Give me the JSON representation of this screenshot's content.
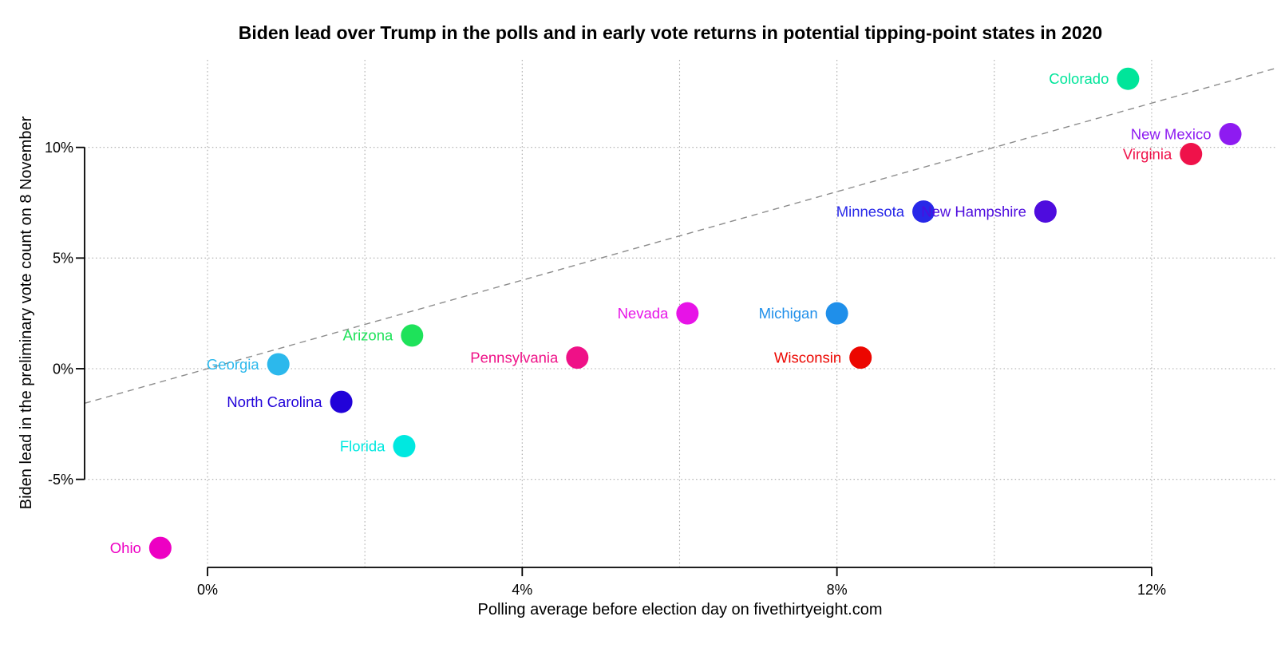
{
  "chart_data": {
    "type": "scatter",
    "title": "Biden lead over Trump in the polls and in early vote returns in potential tipping-point states in 2020",
    "xlabel": "Polling average before election day on fivethirtyeight.com",
    "ylabel": "Biden lead in the preliminary vote count on 8 November",
    "x_ticks": [
      {
        "value": 0,
        "label": "0%"
      },
      {
        "value": 4,
        "label": "4%"
      },
      {
        "value": 8,
        "label": "8%"
      },
      {
        "value": 12,
        "label": "12%"
      }
    ],
    "y_ticks": [
      {
        "value": -5,
        "label": "-5%"
      },
      {
        "value": 0,
        "label": "0%"
      },
      {
        "value": 5,
        "label": "5%"
      },
      {
        "value": 10,
        "label": "10%"
      }
    ],
    "x_grid_values": [
      0,
      2,
      4,
      6,
      8,
      10,
      12
    ],
    "y_grid_values": [
      -5,
      0,
      5,
      10
    ],
    "xlim": [
      -1.6,
      13.6
    ],
    "ylim": [
      -9.0,
      14.0
    ],
    "grid": true,
    "legend": "none",
    "reference_line": {
      "kind": "identity",
      "equation": "y = x",
      "style": "dashed",
      "color": "#8c8c8c"
    },
    "grid_color": "#a9a9a9",
    "axis_color": "#000000",
    "points": [
      {
        "state": "Ohio",
        "poll_lead_pct": -0.6,
        "count_lead_pct": -8.1,
        "color": "#ed00c3"
      },
      {
        "state": "Georgia",
        "poll_lead_pct": 0.9,
        "count_lead_pct": 0.2,
        "color": "#2cb8ec"
      },
      {
        "state": "North Carolina",
        "poll_lead_pct": 1.7,
        "count_lead_pct": -1.5,
        "color": "#2102d9"
      },
      {
        "state": "Florida",
        "poll_lead_pct": 2.5,
        "count_lead_pct": -3.5,
        "color": "#00e8e0"
      },
      {
        "state": "Arizona",
        "poll_lead_pct": 2.6,
        "count_lead_pct": 1.5,
        "color": "#1ee25a"
      },
      {
        "state": "Pennsylvania",
        "poll_lead_pct": 4.7,
        "count_lead_pct": 0.5,
        "color": "#ef1187"
      },
      {
        "state": "Nevada",
        "poll_lead_pct": 6.1,
        "count_lead_pct": 2.5,
        "color": "#e713e7"
      },
      {
        "state": "Michigan",
        "poll_lead_pct": 8.0,
        "count_lead_pct": 2.5,
        "color": "#1f8fea"
      },
      {
        "state": "Wisconsin",
        "poll_lead_pct": 8.3,
        "count_lead_pct": 0.5,
        "color": "#ec0600"
      },
      {
        "state": "Minnesota",
        "poll_lead_pct": 9.1,
        "count_lead_pct": 7.1,
        "color": "#2828e8"
      },
      {
        "state": "New Hampshire",
        "poll_lead_pct": 10.65,
        "count_lead_pct": 7.1,
        "color": "#4e0cde"
      },
      {
        "state": "Colorado",
        "poll_lead_pct": 11.7,
        "count_lead_pct": 13.1,
        "color": "#00e59a"
      },
      {
        "state": "Virginia",
        "poll_lead_pct": 12.5,
        "count_lead_pct": 9.7,
        "color": "#ef124a"
      },
      {
        "state": "New Mexico",
        "poll_lead_pct": 13.0,
        "count_lead_pct": 10.6,
        "color": "#8e1bf1"
      }
    ]
  }
}
